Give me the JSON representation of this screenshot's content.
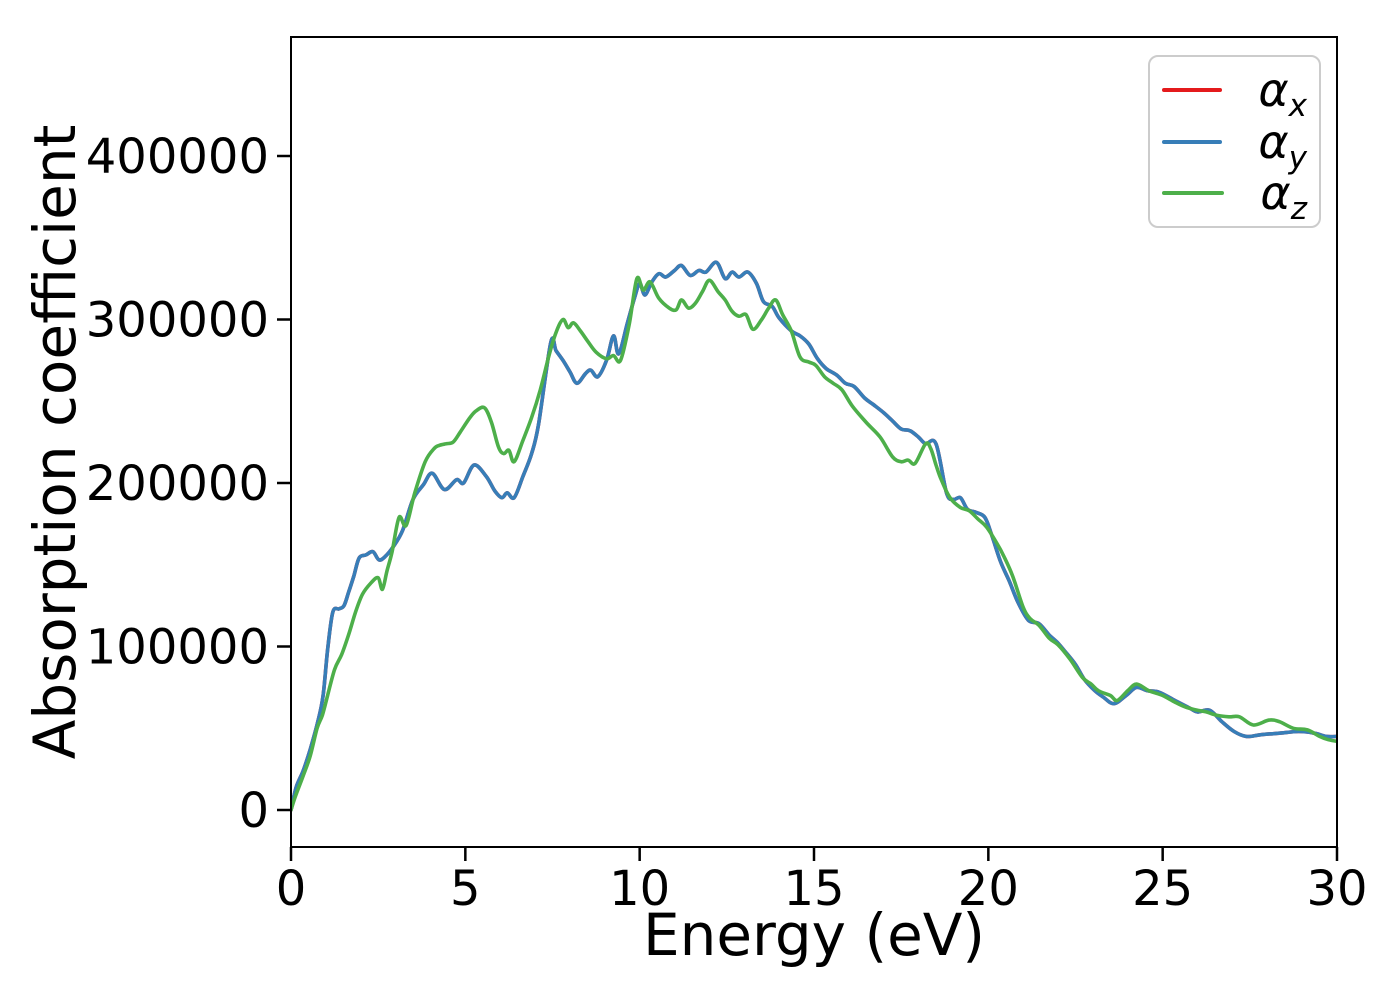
{
  "figure": {
    "background": "#ffffff",
    "spine_color": "#000000"
  },
  "axes": {
    "xlabel": "Energy (eV)",
    "ylabel": "Absorption coefficient",
    "x_ticks": [
      0,
      5,
      10,
      15,
      20,
      25,
      30
    ],
    "y_ticks": [
      0,
      100000,
      200000,
      300000,
      400000
    ]
  },
  "legend": {
    "entries": [
      {
        "symbol": "α",
        "sub": "x",
        "color": "#e41a1c"
      },
      {
        "symbol": "α",
        "sub": "y",
        "color": "#377eb8"
      },
      {
        "symbol": "α",
        "sub": "z",
        "color": "#4daf4a"
      }
    ]
  },
  "chart_data": {
    "type": "line",
    "title": "",
    "xlabel": "Energy (eV)",
    "ylabel": "Absorption coefficient",
    "xlim": [
      0,
      30
    ],
    "ylim": [
      -23000,
      473000
    ],
    "grid": false,
    "legend_position": "upper right",
    "series": [
      {
        "name": "α_x",
        "color": "#e41a1c",
        "points_same_as": "α_y",
        "note": "red curve is completely overlapped by the blue α_y curve; only its legend entry is visible"
      },
      {
        "name": "α_y",
        "color": "#377eb8",
        "points": [
          [
            0,
            0
          ],
          [
            0.15,
            14000
          ],
          [
            0.35,
            24000
          ],
          [
            0.55,
            37000
          ],
          [
            0.77,
            54000
          ],
          [
            0.92,
            70000
          ],
          [
            1.05,
            98000
          ],
          [
            1.2,
            121000
          ],
          [
            1.38,
            123000
          ],
          [
            1.52,
            125000
          ],
          [
            1.65,
            133000
          ],
          [
            1.8,
            143000
          ],
          [
            1.95,
            154000
          ],
          [
            2.15,
            156000
          ],
          [
            2.35,
            158000
          ],
          [
            2.52,
            153000
          ],
          [
            2.7,
            155000
          ],
          [
            2.93,
            161000
          ],
          [
            3.2,
            171000
          ],
          [
            3.5,
            190000
          ],
          [
            3.8,
            199000
          ],
          [
            4.05,
            206000
          ],
          [
            4.4,
            196000
          ],
          [
            4.75,
            202000
          ],
          [
            4.95,
            200000
          ],
          [
            5.25,
            211000
          ],
          [
            5.6,
            204000
          ],
          [
            5.85,
            195000
          ],
          [
            6.05,
            191000
          ],
          [
            6.2,
            194000
          ],
          [
            6.4,
            191000
          ],
          [
            6.65,
            204000
          ],
          [
            6.9,
            218000
          ],
          [
            7.1,
            236000
          ],
          [
            7.45,
            286000
          ],
          [
            7.6,
            281000
          ],
          [
            7.8,
            275000
          ],
          [
            8.0,
            268000
          ],
          [
            8.2,
            261000
          ],
          [
            8.45,
            267000
          ],
          [
            8.6,
            269000
          ],
          [
            8.8,
            265000
          ],
          [
            9.05,
            275000
          ],
          [
            9.25,
            290000
          ],
          [
            9.4,
            279000
          ],
          [
            9.65,
            298000
          ],
          [
            9.85,
            313000
          ],
          [
            10.0,
            322000
          ],
          [
            10.15,
            315000
          ],
          [
            10.35,
            323000
          ],
          [
            10.55,
            328000
          ],
          [
            10.75,
            326000
          ],
          [
            11.0,
            330000
          ],
          [
            11.2,
            333000
          ],
          [
            11.45,
            327000
          ],
          [
            11.7,
            330000
          ],
          [
            11.9,
            329000
          ],
          [
            12.2,
            335000
          ],
          [
            12.45,
            325000
          ],
          [
            12.65,
            329000
          ],
          [
            12.85,
            326000
          ],
          [
            13.1,
            329000
          ],
          [
            13.35,
            322000
          ],
          [
            13.55,
            311000
          ],
          [
            13.8,
            308000
          ],
          [
            14.0,
            301000
          ],
          [
            14.35,
            293000
          ],
          [
            14.6,
            290000
          ],
          [
            14.85,
            285000
          ],
          [
            15.1,
            276000
          ],
          [
            15.35,
            270000
          ],
          [
            15.65,
            266000
          ],
          [
            15.9,
            261000
          ],
          [
            16.15,
            259000
          ],
          [
            16.45,
            252000
          ],
          [
            16.7,
            248000
          ],
          [
            17.0,
            243000
          ],
          [
            17.25,
            238000
          ],
          [
            17.5,
            233000
          ],
          [
            17.75,
            232000
          ],
          [
            18.0,
            228000
          ],
          [
            18.2,
            224000
          ],
          [
            18.5,
            224000
          ],
          [
            18.8,
            194000
          ],
          [
            19.0,
            190000
          ],
          [
            19.2,
            191000
          ],
          [
            19.4,
            184000
          ],
          [
            19.65,
            182000
          ],
          [
            19.9,
            179000
          ],
          [
            20.1,
            168000
          ],
          [
            20.35,
            152000
          ],
          [
            20.6,
            140000
          ],
          [
            20.85,
            127000
          ],
          [
            21.15,
            116000
          ],
          [
            21.45,
            114000
          ],
          [
            21.75,
            107000
          ],
          [
            22.0,
            102000
          ],
          [
            22.2,
            97000
          ],
          [
            22.5,
            89000
          ],
          [
            22.75,
            80000
          ],
          [
            23.05,
            73000
          ],
          [
            23.3,
            69000
          ],
          [
            23.6,
            65000
          ],
          [
            23.95,
            70000
          ],
          [
            24.25,
            75000
          ],
          [
            24.55,
            73000
          ],
          [
            24.9,
            72000
          ],
          [
            25.35,
            67000
          ],
          [
            25.8,
            62000
          ],
          [
            26.0,
            60000
          ],
          [
            26.35,
            61000
          ],
          [
            26.7,
            54000
          ],
          [
            27.05,
            48000
          ],
          [
            27.4,
            45000
          ],
          [
            27.8,
            46000
          ],
          [
            28.35,
            47000
          ],
          [
            28.9,
            48000
          ],
          [
            29.35,
            47000
          ],
          [
            29.7,
            45000
          ],
          [
            30,
            45000
          ]
        ]
      },
      {
        "name": "α_z",
        "color": "#4daf4a",
        "points": [
          [
            0,
            0
          ],
          [
            0.12,
            8000
          ],
          [
            0.35,
            21000
          ],
          [
            0.55,
            33000
          ],
          [
            0.75,
            50000
          ],
          [
            0.9,
            58000
          ],
          [
            1.05,
            70000
          ],
          [
            1.25,
            86000
          ],
          [
            1.45,
            95000
          ],
          [
            1.65,
            107000
          ],
          [
            1.85,
            121000
          ],
          [
            2.05,
            132000
          ],
          [
            2.3,
            139000
          ],
          [
            2.5,
            142000
          ],
          [
            2.62,
            135000
          ],
          [
            2.75,
            146000
          ],
          [
            2.9,
            158000
          ],
          [
            3.1,
            179000
          ],
          [
            3.3,
            174000
          ],
          [
            3.55,
            194000
          ],
          [
            3.85,
            213000
          ],
          [
            4.1,
            221000
          ],
          [
            4.25,
            223000
          ],
          [
            4.45,
            224000
          ],
          [
            4.65,
            225000
          ],
          [
            4.85,
            231000
          ],
          [
            5.1,
            239000
          ],
          [
            5.3,
            244000
          ],
          [
            5.55,
            246000
          ],
          [
            5.75,
            237000
          ],
          [
            5.95,
            222000
          ],
          [
            6.1,
            218000
          ],
          [
            6.25,
            220000
          ],
          [
            6.4,
            213000
          ],
          [
            6.65,
            226000
          ],
          [
            6.9,
            240000
          ],
          [
            7.15,
            257000
          ],
          [
            7.4,
            278000
          ],
          [
            7.6,
            292000
          ],
          [
            7.8,
            300000
          ],
          [
            7.95,
            295000
          ],
          [
            8.1,
            298000
          ],
          [
            8.3,
            293000
          ],
          [
            8.5,
            287000
          ],
          [
            8.75,
            280000
          ],
          [
            9.05,
            276000
          ],
          [
            9.25,
            278000
          ],
          [
            9.45,
            275000
          ],
          [
            9.7,
            297000
          ],
          [
            9.92,
            325000
          ],
          [
            10.1,
            318000
          ],
          [
            10.3,
            323000
          ],
          [
            10.55,
            313000
          ],
          [
            10.85,
            307000
          ],
          [
            11.05,
            306000
          ],
          [
            11.2,
            312000
          ],
          [
            11.4,
            307000
          ],
          [
            11.6,
            310000
          ],
          [
            11.8,
            317000
          ],
          [
            12.0,
            324000
          ],
          [
            12.25,
            317000
          ],
          [
            12.45,
            312000
          ],
          [
            12.65,
            305000
          ],
          [
            12.85,
            302000
          ],
          [
            13.05,
            303000
          ],
          [
            13.25,
            294000
          ],
          [
            13.5,
            300000
          ],
          [
            13.7,
            307000
          ],
          [
            13.9,
            312000
          ],
          [
            14.1,
            303000
          ],
          [
            14.35,
            293000
          ],
          [
            14.6,
            277000
          ],
          [
            14.85,
            274000
          ],
          [
            15.05,
            272000
          ],
          [
            15.3,
            265000
          ],
          [
            15.55,
            261000
          ],
          [
            15.8,
            257000
          ],
          [
            16.1,
            247000
          ],
          [
            16.5,
            237000
          ],
          [
            16.9,
            228000
          ],
          [
            17.25,
            216000
          ],
          [
            17.5,
            213000
          ],
          [
            17.7,
            214000
          ],
          [
            17.9,
            212000
          ],
          [
            18.2,
            224000
          ],
          [
            18.35,
            221000
          ],
          [
            18.5,
            211000
          ],
          [
            18.65,
            202000
          ],
          [
            18.9,
            191000
          ],
          [
            19.2,
            185000
          ],
          [
            19.45,
            183000
          ],
          [
            19.7,
            178000
          ],
          [
            19.95,
            173000
          ],
          [
            20.25,
            163000
          ],
          [
            20.45,
            155000
          ],
          [
            20.7,
            143000
          ],
          [
            21.0,
            124000
          ],
          [
            21.2,
            117000
          ],
          [
            21.45,
            113000
          ],
          [
            21.75,
            105000
          ],
          [
            22.0,
            101000
          ],
          [
            22.35,
            92000
          ],
          [
            22.7,
            81000
          ],
          [
            22.95,
            77000
          ],
          [
            23.15,
            73000
          ],
          [
            23.5,
            70000
          ],
          [
            23.7,
            67000
          ],
          [
            24.0,
            73000
          ],
          [
            24.25,
            77000
          ],
          [
            24.6,
            73000
          ],
          [
            25.0,
            70000
          ],
          [
            25.35,
            66000
          ],
          [
            25.65,
            63000
          ],
          [
            26.0,
            61000
          ],
          [
            26.25,
            60000
          ],
          [
            26.55,
            58000
          ],
          [
            26.9,
            57000
          ],
          [
            27.2,
            57000
          ],
          [
            27.6,
            52000
          ],
          [
            28.05,
            55000
          ],
          [
            28.35,
            54000
          ],
          [
            28.75,
            50000
          ],
          [
            29.15,
            49000
          ],
          [
            29.5,
            45000
          ],
          [
            29.75,
            43000
          ],
          [
            30,
            42000
          ]
        ]
      }
    ]
  }
}
